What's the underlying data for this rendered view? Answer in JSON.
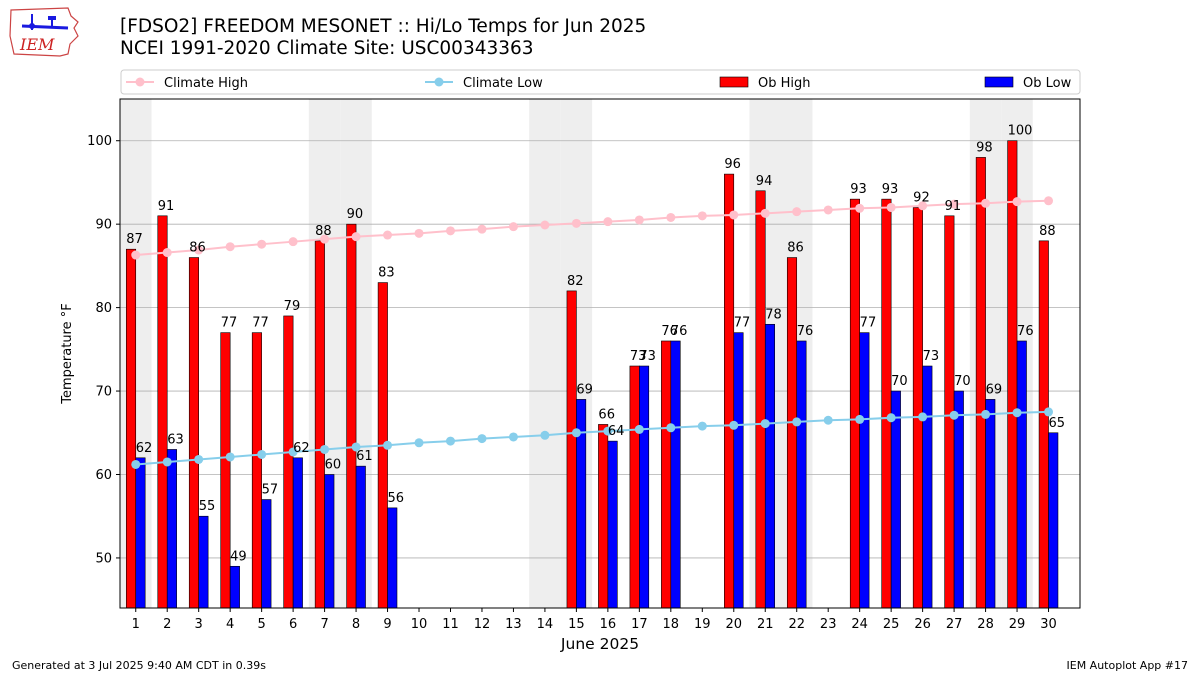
{
  "logo": {
    "text": "IEM",
    "icon": "iowa-state-outline-logo"
  },
  "header": {
    "title_line1": "[FDSO2] FREEDOM MESONET :: Hi/Lo Temps for Jun 2025",
    "title_line2": "NCEI 1991-2020 Climate Site: USC00343363"
  },
  "footer": {
    "left": "Generated at 3 Jul 2025 9:40 AM CDT in 0.39s",
    "right": "IEM Autoplot App #17"
  },
  "colors": {
    "ob_high": "#ff0000",
    "ob_low": "#0000ff",
    "climate_high": "#ffc0cb",
    "climate_low": "#87ceeb",
    "weekend_band": "#eeeeee",
    "grid": "#b0b0b0"
  },
  "chart_data": {
    "type": "bar",
    "xlabel": "June 2025",
    "ylabel": "Temperature °F",
    "ylim": [
      44,
      105
    ],
    "yticks": [
      50,
      60,
      70,
      80,
      90,
      100
    ],
    "grid": "horizontal",
    "legend_position": "top",
    "categories": [
      "1",
      "2",
      "3",
      "4",
      "5",
      "6",
      "7",
      "8",
      "9",
      "10",
      "11",
      "12",
      "13",
      "14",
      "15",
      "16",
      "17",
      "18",
      "19",
      "20",
      "21",
      "22",
      "23",
      "24",
      "25",
      "26",
      "27",
      "28",
      "29",
      "30"
    ],
    "shaded_days": [
      1,
      7,
      8,
      14,
      15,
      21,
      22,
      28,
      29
    ],
    "series": [
      {
        "name": "Climate High",
        "type": "line",
        "values": [
          86.3,
          86.6,
          86.9,
          87.3,
          87.6,
          87.9,
          88.2,
          88.5,
          88.7,
          88.9,
          89.2,
          89.4,
          89.7,
          89.9,
          90.1,
          90.3,
          90.5,
          90.8,
          91.0,
          91.1,
          91.3,
          91.5,
          91.7,
          91.9,
          92.0,
          92.2,
          92.4,
          92.5,
          92.7,
          92.8
        ]
      },
      {
        "name": "Climate Low",
        "type": "line",
        "values": [
          61.2,
          61.5,
          61.8,
          62.1,
          62.4,
          62.7,
          63.0,
          63.3,
          63.5,
          63.8,
          64.0,
          64.3,
          64.5,
          64.7,
          65.0,
          65.2,
          65.4,
          65.6,
          65.8,
          65.9,
          66.1,
          66.3,
          66.5,
          66.6,
          66.8,
          66.9,
          67.1,
          67.2,
          67.4,
          67.5
        ]
      },
      {
        "name": "Ob High",
        "type": "bar",
        "values": [
          87,
          91,
          86,
          77,
          77,
          79,
          88,
          90,
          83,
          null,
          null,
          null,
          null,
          null,
          82,
          66,
          73,
          76,
          null,
          96,
          94,
          86,
          null,
          93,
          93,
          92,
          91,
          98,
          100,
          88
        ]
      },
      {
        "name": "Ob Low",
        "type": "bar",
        "values": [
          62,
          63,
          55,
          49,
          57,
          62,
          60,
          61,
          56,
          null,
          null,
          null,
          null,
          null,
          69,
          64,
          73,
          76,
          null,
          77,
          78,
          76,
          null,
          77,
          70,
          73,
          70,
          69,
          76,
          65
        ]
      }
    ]
  }
}
